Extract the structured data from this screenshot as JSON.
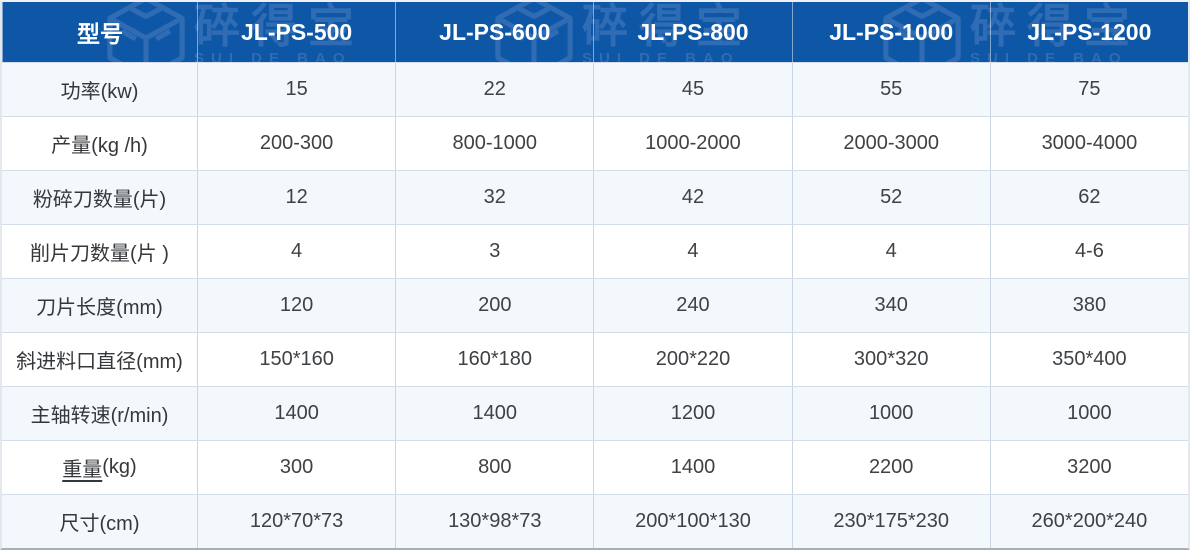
{
  "colors": {
    "header_bg": "#0E56A6",
    "header_text": "#FFFFFF",
    "watermark": "#2F6CB4",
    "row_alt_bg": "#F3F8FC",
    "row_bg": "#FFFFFF",
    "grid_border": "#CCD6E3",
    "body_text": "#3F4245"
  },
  "watermark": {
    "brand_cn": "碎得宝",
    "brand_en": "SUI DE BAO",
    "logo_icon": "isometric-cube-logo"
  },
  "header": {
    "col0": "型号",
    "models": [
      "JL-PS-500",
      "JL-PS-600",
      "JL-PS-800",
      "JL-PS-1000",
      "JL-PS-1200"
    ]
  },
  "rows": [
    {
      "label": "功率(kw)",
      "values": [
        "15",
        "22",
        "45",
        "55",
        "75"
      ]
    },
    {
      "label": "产量(kg /h)",
      "values": [
        "200-300",
        "800-1000",
        "1000-2000",
        "2000-3000",
        "3000-4000"
      ]
    },
    {
      "label": "粉碎刀数量(片)",
      "values": [
        "12",
        "32",
        "42",
        "52",
        "62"
      ]
    },
    {
      "label": "削片刀数量(片 )",
      "values": [
        "4",
        "3",
        "4",
        "4",
        "4-6"
      ]
    },
    {
      "label": "刀片长度(mm)",
      "values": [
        "120",
        "200",
        "240",
        "340",
        "380"
      ]
    },
    {
      "label": "斜进料口直径(mm)",
      "values": [
        "150*160",
        "160*180",
        "200*220",
        "300*320",
        "350*400"
      ]
    },
    {
      "label": "主轴转速(r/min)",
      "values": [
        "1400",
        "1400",
        "1200",
        "1000",
        "1000"
      ]
    },
    {
      "label": "重量(kg)",
      "underline_part": "重量",
      "label_rest": "(kg)",
      "values": [
        "300",
        "800",
        "1400",
        "2200",
        "3200"
      ]
    },
    {
      "label": "尺寸(cm)",
      "values": [
        "120*70*73",
        "130*98*73",
        "200*100*130",
        "230*175*230",
        "260*200*240"
      ]
    }
  ]
}
